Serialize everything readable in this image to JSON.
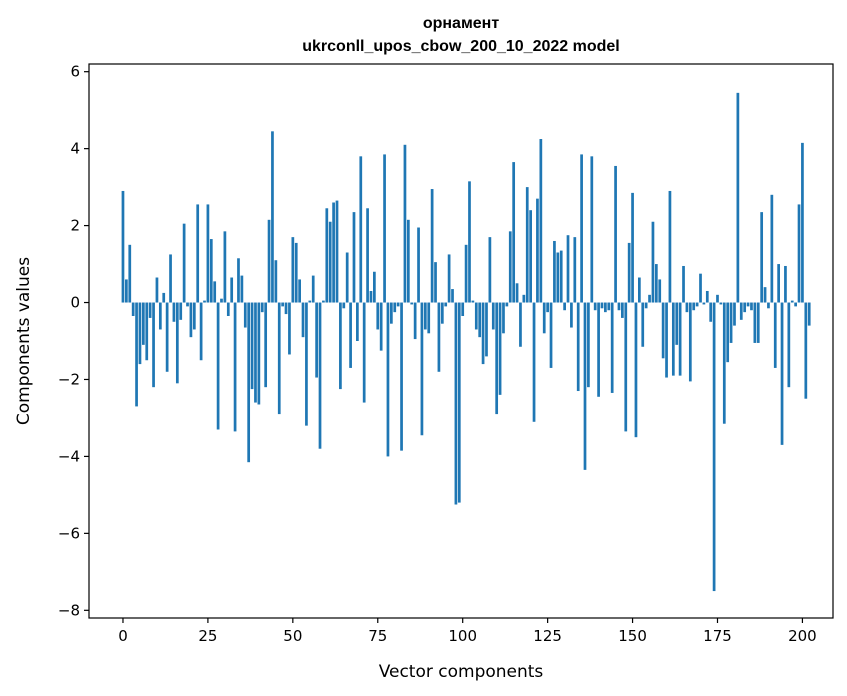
{
  "chart_data": {
    "type": "bar",
    "title_line1": "орнамент",
    "title_line2": "ukrconll_upos_cbow_200_10_2022 model",
    "xlabel": "Vector components",
    "ylabel": "Components values",
    "xlim": [
      -10,
      209
    ],
    "ylim": [
      -8.2,
      6.2
    ],
    "xticks": [
      0,
      25,
      50,
      75,
      100,
      125,
      150,
      175,
      200
    ],
    "yticks": [
      -8,
      -6,
      -4,
      -2,
      0,
      2,
      4,
      6
    ],
    "bar_color": "#1f77b4",
    "values": [
      2.9,
      0.6,
      1.5,
      -0.35,
      -2.7,
      -1.6,
      -1.1,
      -1.5,
      -0.4,
      -2.2,
      0.65,
      -0.7,
      0.25,
      -1.8,
      1.25,
      -0.5,
      -2.1,
      -0.45,
      2.05,
      -0.1,
      -0.9,
      -0.7,
      2.55,
      -1.5,
      0.05,
      2.55,
      1.65,
      0.55,
      -3.3,
      0.1,
      1.85,
      -0.35,
      0.65,
      -3.35,
      1.15,
      0.7,
      -0.65,
      -4.15,
      -2.25,
      -2.6,
      -2.65,
      -0.25,
      -2.2,
      2.15,
      4.45,
      1.1,
      -2.9,
      -0.1,
      -0.3,
      -1.35,
      1.7,
      1.55,
      0.6,
      -0.9,
      -3.2,
      0.05,
      0.7,
      -1.95,
      -3.8,
      0.05,
      2.45,
      2.1,
      2.6,
      2.65,
      -2.25,
      -0.15,
      1.3,
      -1.7,
      2.35,
      -1.0,
      3.8,
      -2.6,
      2.45,
      0.3,
      0.8,
      -0.7,
      -1.25,
      3.85,
      -4.0,
      -0.55,
      -0.25,
      -0.1,
      -3.85,
      4.1,
      2.15,
      -0.05,
      -0.95,
      1.95,
      -3.45,
      -0.7,
      -0.8,
      2.95,
      1.05,
      -1.8,
      -0.55,
      -0.1,
      1.25,
      0.35,
      -5.25,
      -5.2,
      -0.35,
      1.5,
      3.15,
      0.05,
      -0.7,
      -0.9,
      -1.6,
      -1.4,
      1.7,
      -0.7,
      -2.9,
      -2.4,
      -0.8,
      -0.1,
      1.85,
      3.65,
      0.5,
      -1.15,
      0.2,
      3.0,
      2.4,
      -3.1,
      2.7,
      4.25,
      -0.8,
      -0.25,
      -1.7,
      1.6,
      1.3,
      1.35,
      -0.2,
      1.75,
      -0.65,
      1.7,
      -2.3,
      3.85,
      -4.35,
      -2.2,
      3.8,
      -0.2,
      -2.45,
      -0.15,
      -0.25,
      -0.2,
      -2.35,
      3.55,
      -0.2,
      -0.4,
      -3.35,
      1.55,
      2.85,
      -3.5,
      0.65,
      -1.15,
      -0.15,
      0.2,
      2.1,
      1.0,
      0.6,
      -1.45,
      -1.95,
      2.9,
      -1.9,
      -1.1,
      -1.9,
      0.95,
      -0.25,
      -2.05,
      -0.2,
      -0.1,
      0.75,
      -0.05,
      0.3,
      -0.5,
      -7.5,
      0.2,
      -0.05,
      -3.15,
      -1.55,
      -1.05,
      -0.6,
      5.45,
      -0.45,
      -0.25,
      -0.1,
      -0.2,
      -1.05,
      -1.05,
      2.35,
      0.4,
      -0.15,
      2.8,
      -1.7,
      1.0,
      -3.7,
      0.95,
      -2.2,
      0.05,
      -0.1,
      2.55,
      4.15,
      -2.5,
      -0.6
    ]
  }
}
